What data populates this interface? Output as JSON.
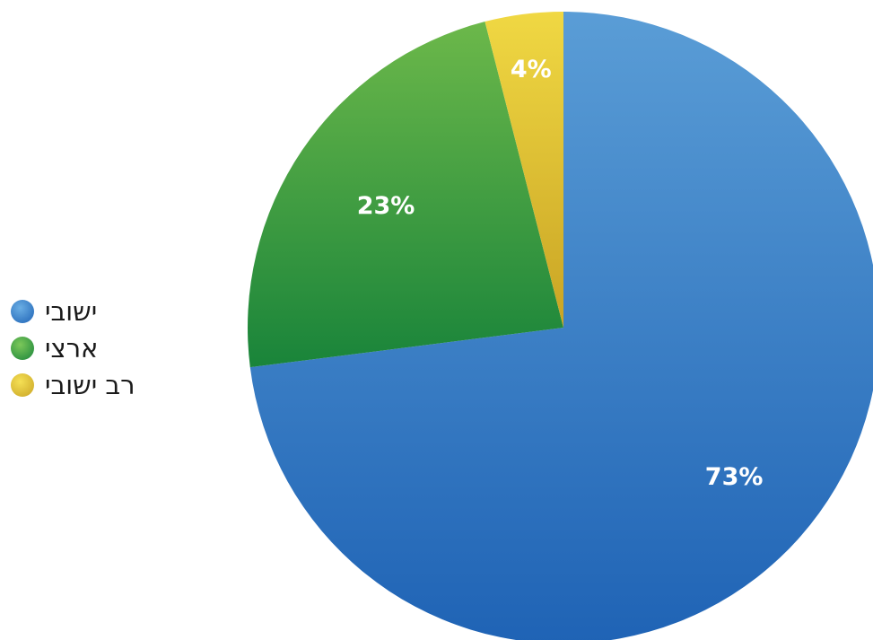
{
  "chart_data": {
    "type": "pie",
    "title": "",
    "categories": [
      "ישובי",
      "ארצי",
      "רב ישובי"
    ],
    "values": [
      73,
      23,
      4
    ],
    "value_labels": [
      "73%",
      "23%",
      "4%"
    ],
    "colors": [
      "#2E7BC4",
      "#3A9A45",
      "#E2C230"
    ],
    "legend_placement": "left"
  }
}
